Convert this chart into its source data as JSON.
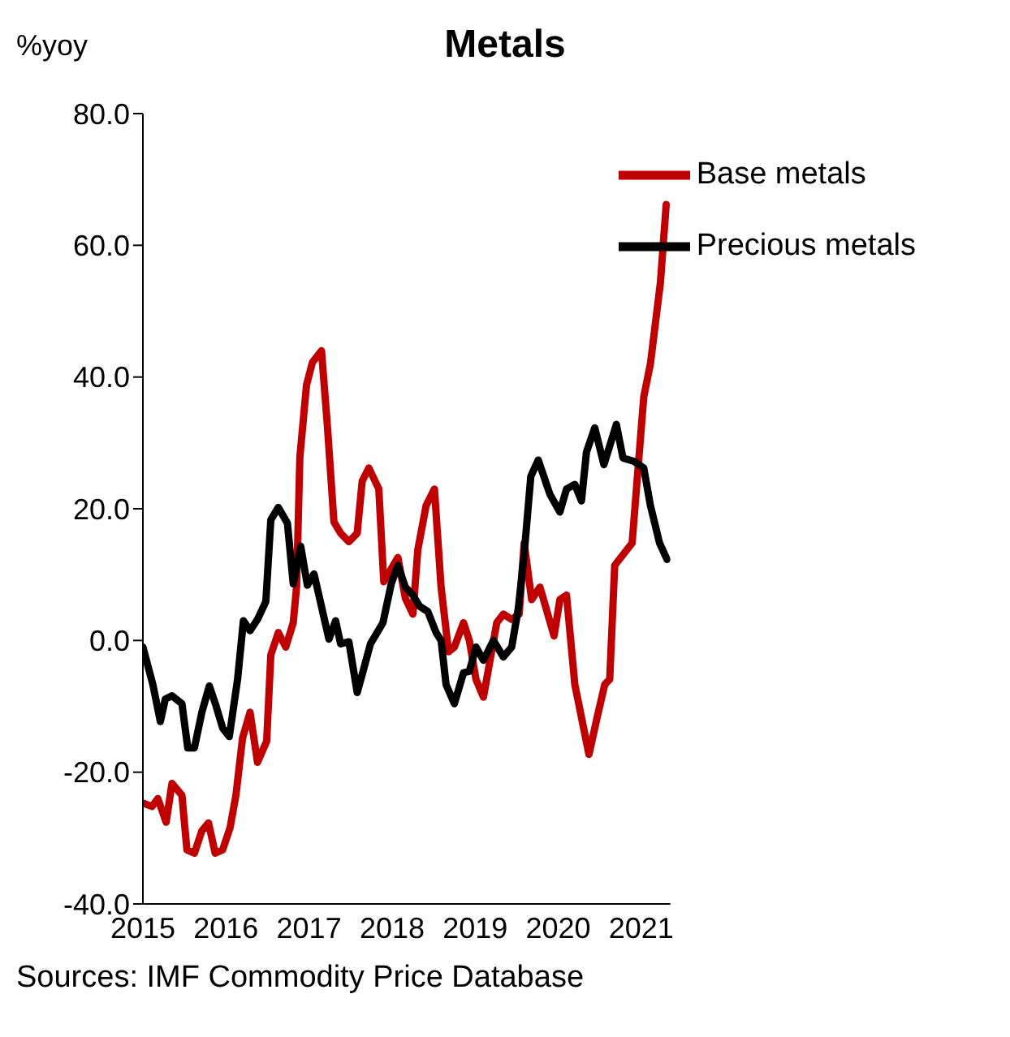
{
  "chart_data": {
    "type": "line",
    "title": "Metals",
    "ylabel": "%yoy",
    "annotations": [
      "Sources: IMF Commodity Price Database"
    ],
    "xlim": [
      2015,
      2021.35
    ],
    "xticks": [
      2015,
      2016,
      2017,
      2018,
      2019,
      2020,
      2021
    ],
    "ylim": [
      -40,
      80
    ],
    "yticks": [
      {
        "value": -40,
        "label": "-40.0"
      },
      {
        "value": -20,
        "label": "-20.0"
      },
      {
        "value": 0,
        "label": "0.0"
      },
      {
        "value": 20,
        "label": "20.0"
      },
      {
        "value": 40,
        "label": "40.0"
      },
      {
        "value": 60,
        "label": "60.0"
      },
      {
        "value": 80,
        "label": "80.0"
      }
    ],
    "grid": false,
    "legend": "top right",
    "marker": "none",
    "line_style": "solid",
    "series": [
      {
        "name": "Base metals",
        "color": "#c00000",
        "x": [
          2015.0,
          2015.11,
          2015.18,
          2015.28,
          2015.35,
          2015.47,
          2015.53,
          2015.62,
          2015.71,
          2015.79,
          2015.87,
          2015.96,
          2016.05,
          2016.12,
          2016.2,
          2016.29,
          2016.38,
          2016.49,
          2016.54,
          2016.63,
          2016.72,
          2016.81,
          2016.85,
          2016.89,
          2016.97,
          2017.04,
          2017.15,
          2017.22,
          2017.3,
          2017.38,
          2017.48,
          2017.58,
          2017.64,
          2017.72,
          2017.84,
          2017.9,
          2018.07,
          2018.16,
          2018.25,
          2018.31,
          2018.41,
          2018.51,
          2018.59,
          2018.68,
          2018.75,
          2018.86,
          2018.93,
          2019.01,
          2019.1,
          2019.26,
          2019.34,
          2019.44,
          2019.53,
          2019.59,
          2019.68,
          2019.78,
          2019.95,
          2020.02,
          2020.1,
          2020.2,
          2020.37,
          2020.47,
          2020.56,
          2020.62,
          2020.68,
          2020.89,
          2020.93,
          2021.03,
          2021.11,
          2021.23,
          2021.3
        ],
        "values": [
          -24.7,
          -25.2,
          -24,
          -27.6,
          -21.7,
          -23.5,
          -31.8,
          -32.3,
          -28.9,
          -27.7,
          -32.3,
          -31.8,
          -28.4,
          -23.5,
          -14.8,
          -10.9,
          -18.5,
          -15.3,
          -2.2,
          1.2,
          -1,
          2.7,
          8.1,
          27.9,
          38.8,
          42.2,
          44,
          32.8,
          18,
          16.3,
          15,
          16.3,
          24.2,
          26.2,
          23,
          8.9,
          12.6,
          6.4,
          4,
          13.8,
          20.5,
          23,
          8.1,
          -1.7,
          -1,
          2.7,
          0,
          -5.9,
          -8.6,
          2.7,
          4,
          3.2,
          4,
          14.8,
          6.2,
          8.1,
          0.7,
          6.2,
          6.9,
          -6.7,
          -17.3,
          -11.6,
          -6.7,
          -5.9,
          11.4,
          14.8,
          21.2,
          37,
          42,
          54.3,
          66.2
        ]
      },
      {
        "name": "Precious metals",
        "color": "#000000",
        "x": [
          2015.0,
          2015.12,
          2015.21,
          2015.27,
          2015.35,
          2015.47,
          2015.54,
          2015.62,
          2015.71,
          2015.8,
          2015.88,
          2015.96,
          2016.04,
          2016.14,
          2016.21,
          2016.29,
          2016.38,
          2016.48,
          2016.54,
          2016.63,
          2016.74,
          2016.81,
          2016.9,
          2016.98,
          2017.06,
          2017.14,
          2017.24,
          2017.32,
          2017.38,
          2017.48,
          2017.58,
          2017.65,
          2017.74,
          2017.89,
          2017.99,
          2018.07,
          2018.16,
          2018.25,
          2018.33,
          2018.43,
          2018.53,
          2018.59,
          2018.65,
          2018.75,
          2018.86,
          2018.93,
          2019.01,
          2019.1,
          2019.22,
          2019.34,
          2019.44,
          2019.52,
          2019.59,
          2019.67,
          2019.76,
          2019.9,
          2020.02,
          2020.1,
          2020.2,
          2020.28,
          2020.34,
          2020.44,
          2020.55,
          2020.7,
          2020.78,
          2020.91,
          2021.03,
          2021.11,
          2021.22,
          2021.31
        ],
        "values": [
          -1,
          -6.7,
          -12.3,
          -8.9,
          -8.4,
          -9.6,
          -16.3,
          -16.3,
          -10.9,
          -6.9,
          -9.9,
          -13.3,
          -14.6,
          -5.9,
          3,
          1.5,
          3.2,
          5.9,
          18.3,
          20.2,
          17.8,
          8.6,
          14.3,
          8.4,
          10.1,
          5.7,
          0.2,
          3,
          -0.5,
          -0.2,
          -7.9,
          -4.7,
          -0.5,
          2.7,
          8.6,
          11.4,
          8.1,
          6.9,
          5.2,
          4.4,
          1.2,
          0,
          -6.7,
          -9.6,
          -4.9,
          -4.7,
          -1,
          -3,
          0,
          -2.5,
          -1,
          4.9,
          13.1,
          24.9,
          27.4,
          22.2,
          19.5,
          23,
          23.7,
          21.2,
          28.6,
          32.3,
          26.7,
          32.8,
          27.7,
          27.2,
          26.2,
          20.5,
          14.8,
          12.3
        ]
      }
    ]
  }
}
